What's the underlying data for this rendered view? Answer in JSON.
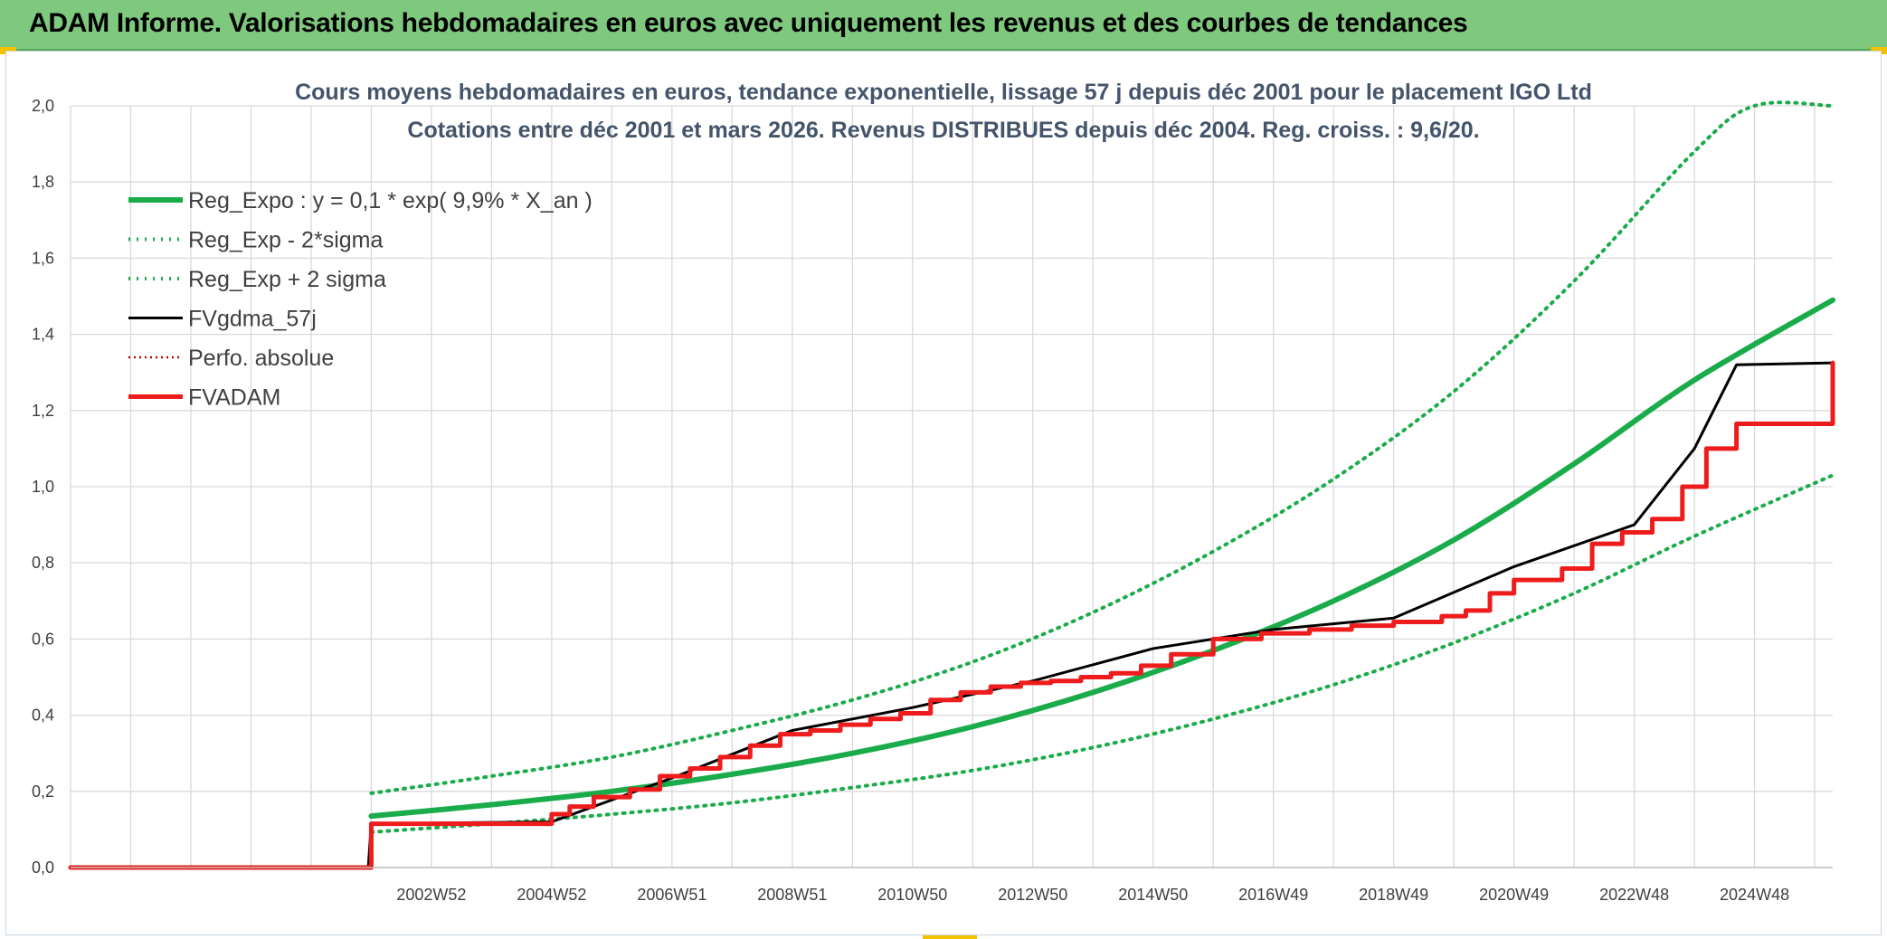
{
  "header": {
    "title": "ADAM Informe. Valorisations hebdomadaires en euros avec uniquement les revenus et des courbes de tendances"
  },
  "colors": {
    "banner": "#7fc97f",
    "trend": "#1aac4a",
    "fv": "#000000",
    "adam": "#ee1c1c",
    "perf": "#c00000",
    "grid": "#d9d9d9"
  },
  "chart_data": {
    "type": "line",
    "title": "Cours moyens hebdomadaires en euros, tendance exponentielle, lissage 57 j depuis déc 2001 pour le placement IGO Ltd",
    "subtitle": "Cotations entre déc 2001 et mars 2026. Revenus DISTRIBUES depuis déc 2004. Reg. croiss. : 9,6/20.",
    "xlim": [
      1997.0,
      2026.3
    ],
    "ylim": [
      0,
      2.0
    ],
    "y_ticks": [
      "0,0",
      "0,2",
      "0,4",
      "0,6",
      "0,8",
      "1,0",
      "1,2",
      "1,4",
      "1,6",
      "1,8",
      "2,0"
    ],
    "x_ticks": [
      {
        "x": 2003.0,
        "label": "2002W52"
      },
      {
        "x": 2005.0,
        "label": "2004W52"
      },
      {
        "x": 2007.0,
        "label": "2006W51"
      },
      {
        "x": 2009.0,
        "label": "2008W51"
      },
      {
        "x": 2011.0,
        "label": "2010W50"
      },
      {
        "x": 2013.0,
        "label": "2012W50"
      },
      {
        "x": 2015.0,
        "label": "2014W50"
      },
      {
        "x": 2017.0,
        "label": "2016W49"
      },
      {
        "x": 2019.0,
        "label": "2018W49"
      },
      {
        "x": 2021.0,
        "label": "2020W49"
      },
      {
        "x": 2023.0,
        "label": "2022W48"
      },
      {
        "x": 2025.0,
        "label": "2024W48"
      }
    ],
    "grid": true,
    "legend_position": "top-left",
    "series": [
      {
        "name": "Reg_Expo : y = 0,1 * exp( 9,9% *  X_an )",
        "style": "solid-thick",
        "color": "#1aac4a",
        "x": [
          2002.0,
          2004.0,
          2006.0,
          2008.0,
          2010.0,
          2012.0,
          2014.0,
          2016.0,
          2018.0,
          2020.0,
          2022.0,
          2024.0,
          2026.3
        ],
        "y": [
          0.135,
          0.165,
          0.2,
          0.245,
          0.3,
          0.37,
          0.46,
          0.57,
          0.7,
          0.86,
          1.06,
          1.28,
          1.49
        ]
      },
      {
        "name": "Reg_Exp - 2*sigma",
        "style": "dotted",
        "color": "#1aac4a",
        "x": [
          2002.0,
          2004.0,
          2006.0,
          2008.0,
          2010.0,
          2012.0,
          2014.0,
          2016.0,
          2018.0,
          2020.0,
          2022.0,
          2024.0,
          2026.3
        ],
        "y": [
          0.093,
          0.115,
          0.14,
          0.17,
          0.21,
          0.255,
          0.315,
          0.39,
          0.48,
          0.59,
          0.72,
          0.87,
          1.03
        ]
      },
      {
        "name": "Reg_Exp + 2 sigma",
        "style": "dotted",
        "color": "#1aac4a",
        "x": [
          2002.0,
          2004.0,
          2006.0,
          2008.0,
          2010.0,
          2012.0,
          2014.0,
          2016.0,
          2018.0,
          2020.0,
          2022.0,
          2024.0,
          2025.0,
          2026.3
        ],
        "y": [
          0.195,
          0.24,
          0.29,
          0.36,
          0.44,
          0.54,
          0.67,
          0.83,
          1.02,
          1.25,
          1.54,
          1.88,
          2.0,
          2.0
        ]
      },
      {
        "name": "FVgdma_57j",
        "style": "solid",
        "color": "#000000",
        "x": [
          1997.0,
          2001.95,
          2002.0,
          2005.0,
          2007.0,
          2009.0,
          2011.0,
          2013.0,
          2015.0,
          2017.0,
          2019.0,
          2021.0,
          2023.0,
          2024.0,
          2024.7,
          2026.3
        ],
        "y": [
          0.0,
          0.0,
          0.115,
          0.12,
          0.235,
          0.36,
          0.42,
          0.49,
          0.575,
          0.625,
          0.655,
          0.79,
          0.9,
          1.1,
          1.32,
          1.325
        ]
      },
      {
        "name": "Perfo. absolue",
        "style": "dotted",
        "color": "#c00000",
        "x": [],
        "y": []
      },
      {
        "name": "FVADAM",
        "style": "step-thick",
        "color": "#ee1c1c",
        "x": [
          1997.0,
          2002.0,
          2005.0,
          2005.3,
          2005.7,
          2006.3,
          2006.8,
          2007.3,
          2007.8,
          2008.3,
          2008.8,
          2009.3,
          2009.8,
          2010.3,
          2010.8,
          2011.3,
          2011.8,
          2012.3,
          2012.8,
          2013.3,
          2013.8,
          2014.3,
          2014.8,
          2015.3,
          2016.0,
          2016.8,
          2017.6,
          2018.3,
          2019.0,
          2019.8,
          2020.2,
          2020.6,
          2021.0,
          2021.8,
          2022.3,
          2022.8,
          2023.3,
          2023.8,
          2024.2,
          2024.7,
          2026.3
        ],
        "y": [
          0.0,
          0.115,
          0.14,
          0.16,
          0.185,
          0.205,
          0.24,
          0.26,
          0.29,
          0.32,
          0.35,
          0.36,
          0.375,
          0.39,
          0.405,
          0.44,
          0.46,
          0.475,
          0.485,
          0.49,
          0.5,
          0.51,
          0.53,
          0.56,
          0.6,
          0.615,
          0.625,
          0.635,
          0.645,
          0.66,
          0.675,
          0.72,
          0.755,
          0.785,
          0.85,
          0.88,
          0.915,
          1.0,
          1.1,
          1.165,
          1.325
        ]
      }
    ]
  }
}
